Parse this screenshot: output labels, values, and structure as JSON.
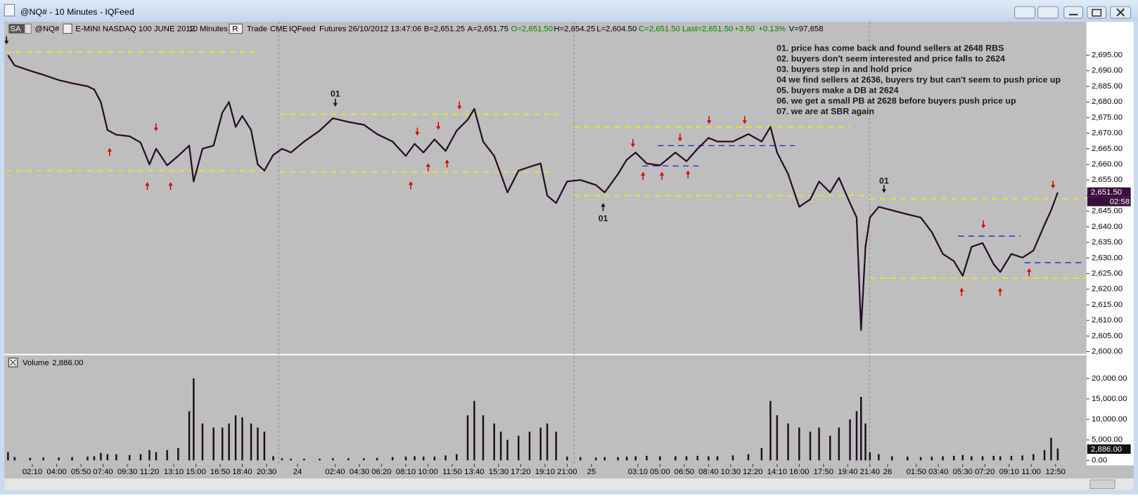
{
  "window": {
    "title": "@NQ# - 10 Minutes - IQFeed"
  },
  "toolbar": [
    {
      "text": "SA",
      "color": "#ffffff"
    },
    {
      "text": "@NQ#",
      "color": "#000000"
    },
    {
      "text": "E-MINI NASDAQ 100 JUNE 2012",
      "color": "#000000"
    },
    {
      "text": "10 Minutes",
      "color": "#000000"
    },
    {
      "text": "R",
      "color": "#000000"
    },
    {
      "text": "Trade",
      "color": "#000000"
    },
    {
      "text": "CME",
      "color": "#000000"
    },
    {
      "text": "IQFeed",
      "color": "#000000"
    },
    {
      "text": "Futures",
      "color": "#000000"
    },
    {
      "text": "26/10/2012",
      "color": "#000000"
    },
    {
      "text": "13:47:06",
      "color": "#000000"
    },
    {
      "text": "B=2,651.25",
      "color": "#000000"
    },
    {
      "text": "A=2,651.75",
      "color": "#000000"
    },
    {
      "text": "O=2,651.50",
      "color": "#008000"
    },
    {
      "text": "H=2,654.25",
      "color": "#000000"
    },
    {
      "text": "L=2,604.50",
      "color": "#000000"
    },
    {
      "text": "C=2,651.50",
      "color": "#008000"
    },
    {
      "text": "Last=2,651.50",
      "color": "#008000"
    },
    {
      "text": "+3.50",
      "color": "#008000"
    },
    {
      "text": "+0.13%",
      "color": "#008000"
    },
    {
      "text": "V=97,658",
      "color": "#000000"
    }
  ],
  "annotations": [
    "01. price has come back and found sellers at 2648 RBS",
    "02. buyers don't seem interested and price falls to 2624",
    "03. buyers step in and hold price",
    "04 we find sellers at 2636, buyers try but can't seem to push price up",
    "05. buyers make a DB at 2624",
    "06. we get a small PB at 2628 before buyers push price up",
    "07. we are at SBR again"
  ],
  "markers": [
    "01",
    "01",
    "01"
  ],
  "chart_data": [
    {
      "type": "line",
      "color": "#2a0c2a",
      "x": [
        1,
        4,
        11,
        17,
        24,
        30,
        37,
        40,
        43,
        46,
        50,
        56,
        61,
        65,
        68,
        73,
        78,
        83,
        85,
        89,
        94,
        98,
        101,
        104,
        107,
        111,
        114,
        117,
        121,
        125,
        129,
        135,
        142,
        148,
        155,
        162,
        168,
        175,
        181,
        185,
        189,
        194,
        199,
        204,
        209,
        212,
        216,
        221,
        224,
        227,
        232,
        237,
        242,
        245,
        249,
        254,
        260,
        267,
        271,
        277,
        281,
        285,
        290,
        296,
        303,
        308,
        313,
        318,
        322,
        329,
        336,
        342,
        346,
        349,
        354,
        359,
        364,
        368,
        373,
        377,
        382,
        385,
        387,
        389,
        391,
        395,
        401,
        408,
        414,
        419,
        424,
        429,
        433,
        437,
        442,
        447,
        450,
        455,
        460,
        465,
        470,
        473,
        476
      ],
      "values": [
        2695,
        2691.7,
        2690,
        2688.7,
        2687,
        2686,
        2685,
        2684,
        2680,
        2671,
        2669.5,
        2669,
        2667,
        2660,
        2665,
        2659.7,
        2662.7,
        2666,
        2654.5,
        2665,
        2666,
        2676.6,
        2680,
        2672,
        2675.5,
        2671,
        2660,
        2658,
        2663,
        2665,
        2663.8,
        2667.3,
        2670.8,
        2674.8,
        2673.6,
        2672.7,
        2669.7,
        2667.3,
        2662.7,
        2666.6,
        2663.8,
        2668,
        2664.3,
        2670.8,
        2674.3,
        2677.8,
        2667.3,
        2662.7,
        2656.9,
        2651,
        2658,
        2659.2,
        2660.3,
        2650,
        2647.6,
        2654.5,
        2655,
        2653.4,
        2651,
        2656.9,
        2661.5,
        2663.8,
        2660.3,
        2659.7,
        2663.8,
        2661,
        2665,
        2668.5,
        2667.3,
        2667.3,
        2669.7,
        2667.3,
        2672,
        2663.8,
        2656.9,
        2646.4,
        2648.8,
        2654.5,
        2651,
        2655.7,
        2647.6,
        2643,
        2606.9,
        2633.6,
        2643,
        2646.4,
        2645.3,
        2644,
        2643,
        2638.3,
        2631.3,
        2629,
        2624.3,
        2633.6,
        2634.8,
        2628,
        2625.5,
        2631.3,
        2630.1,
        2632.4,
        2640.6,
        2645.3,
        2651
      ],
      "xlim": [
        0,
        489
      ],
      "ylim": [
        2599.3,
        2701.5
      ],
      "yticks": [
        {
          "value": 2600,
          "label": "2,600.00"
        },
        {
          "value": 2605,
          "label": "2,605.00"
        },
        {
          "value": 2610,
          "label": "2,610.00"
        },
        {
          "value": 2615,
          "label": "2,615.00"
        },
        {
          "value": 2620,
          "label": "2,620.00"
        },
        {
          "value": 2625,
          "label": "2,625.00"
        },
        {
          "value": 2630,
          "label": "2,630.00"
        },
        {
          "value": 2635,
          "label": "2,635.00"
        },
        {
          "value": 2640,
          "label": "2,640.00"
        },
        {
          "value": 2645,
          "label": "2,645.00"
        },
        {
          "value": 2650,
          "label": "2,650.00"
        },
        {
          "value": 2655,
          "label": "2,655.00"
        },
        {
          "value": 2660,
          "label": "2,660.00"
        },
        {
          "value": 2665,
          "label": "2,665.00"
        },
        {
          "value": 2670,
          "label": "2,670.00"
        },
        {
          "value": 2675,
          "label": "2,675.00"
        },
        {
          "value": 2680,
          "label": "2,680.00"
        },
        {
          "value": 2685,
          "label": "2,685.00"
        },
        {
          "value": 2690,
          "label": "2,690.00"
        },
        {
          "value": 2695,
          "label": "2,695.00"
        }
      ],
      "last_label": "2,651.50",
      "time_label": "02:58",
      "levels": [
        {
          "value": 2696,
          "x": [
            0,
            115
          ],
          "color": "#f0f000"
        },
        {
          "value": 2658,
          "x": [
            0,
            117
          ],
          "color": "#f0f000"
        },
        {
          "value": 2676,
          "x": [
            124,
            250
          ],
          "color": "#f0f000"
        },
        {
          "value": 2657.5,
          "x": [
            124,
            249
          ],
          "color": "#f0f000"
        },
        {
          "value": 2672,
          "x": [
            257,
            382
          ],
          "color": "#f0f000"
        },
        {
          "value": 2650,
          "x": [
            257,
            391
          ],
          "color": "#f0f000"
        },
        {
          "value": 2649,
          "x": [
            391,
            489
          ],
          "color": "#f0f000"
        },
        {
          "value": 2623.5,
          "x": [
            391,
            489
          ],
          "color": "#f0f000"
        },
        {
          "value": 2666,
          "x": [
            295,
            357
          ],
          "color": "#2020d0"
        },
        {
          "value": 2659.5,
          "x": [
            288,
            315
          ],
          "color": "#2020d0"
        },
        {
          "value": 2637,
          "x": [
            431,
            459
          ],
          "color": "#2020d0"
        },
        {
          "value": 2628.5,
          "x": [
            461,
            487
          ],
          "color": "#2020d0"
        }
      ]
    },
    {
      "type": "bar",
      "title": "Volume",
      "current_label": "2,886.00",
      "color": "#1e0e1e",
      "x": [
        1,
        4,
        11,
        17,
        24,
        30,
        37,
        40,
        43,
        46,
        50,
        56,
        61,
        65,
        68,
        73,
        78,
        83,
        85,
        89,
        94,
        98,
        101,
        104,
        107,
        111,
        114,
        117,
        121,
        125,
        129,
        135,
        142,
        148,
        155,
        162,
        168,
        175,
        181,
        185,
        189,
        194,
        199,
        204,
        209,
        212,
        216,
        221,
        224,
        227,
        232,
        237,
        242,
        245,
        249,
        254,
        260,
        267,
        271,
        277,
        281,
        285,
        290,
        296,
        303,
        308,
        313,
        318,
        322,
        329,
        336,
        342,
        346,
        349,
        354,
        359,
        364,
        368,
        373,
        377,
        382,
        385,
        387,
        389,
        391,
        395,
        401,
        408,
        414,
        419,
        424,
        429,
        433,
        437,
        442,
        447,
        450,
        455,
        460,
        465,
        470,
        473,
        476
      ],
      "values": [
        2000,
        800,
        600,
        700,
        700,
        800,
        900,
        1000,
        1800,
        1500,
        1500,
        1300,
        1500,
        2500,
        2000,
        2500,
        3000,
        12000,
        20000,
        9000,
        8000,
        8000,
        9000,
        11000,
        10500,
        9000,
        8000,
        7000,
        1000,
        500,
        400,
        400,
        400,
        500,
        500,
        500,
        600,
        800,
        900,
        1000,
        900,
        900,
        1200,
        1500,
        11000,
        14500,
        11000,
        9000,
        7000,
        5000,
        6000,
        7000,
        8000,
        9000,
        7000,
        900,
        800,
        700,
        800,
        800,
        900,
        1000,
        1100,
        1000,
        1000,
        1000,
        1100,
        1000,
        1000,
        1200,
        1500,
        3000,
        14500,
        11000,
        9000,
        8000,
        7000,
        8000,
        6000,
        8000,
        10000,
        12000,
        15500,
        9000,
        2000,
        1500,
        1000,
        900,
        800,
        900,
        1000,
        1100,
        1300,
        1000,
        1000,
        1100,
        1000,
        1100,
        1200,
        1500,
        2500,
        5500,
        2886
      ],
      "xlim": [
        0,
        489
      ],
      "ylim": [
        -885,
        25660
      ],
      "yticks": [
        {
          "value": 0,
          "label": "0.00"
        },
        {
          "value": 5000,
          "label": "5,000.00"
        },
        {
          "value": 10000,
          "label": "10,000.00"
        },
        {
          "value": 15000,
          "label": "15,000.00"
        },
        {
          "value": 20000,
          "label": "20,000.00"
        }
      ],
      "xticks": [
        {
          "value": 12,
          "label": "02:10"
        },
        {
          "value": 23,
          "label": "04:00"
        },
        {
          "value": 34,
          "label": "05:50"
        },
        {
          "value": 44,
          "label": "07:40"
        },
        {
          "value": 55,
          "label": "09:30"
        },
        {
          "value": 65,
          "label": "11:20"
        },
        {
          "value": 76,
          "label": "13:10"
        },
        {
          "value": 86,
          "label": "15:00"
        },
        {
          "value": 97,
          "label": "16:50"
        },
        {
          "value": 107,
          "label": "18:40"
        },
        {
          "value": 118,
          "label": "20:30"
        },
        {
          "value": 132,
          "label": "24"
        },
        {
          "value": 149,
          "label": "02:40"
        },
        {
          "value": 160,
          "label": "04:30"
        },
        {
          "value": 170,
          "label": "06:20"
        },
        {
          "value": 181,
          "label": "08:10"
        },
        {
          "value": 191,
          "label": "10:00"
        },
        {
          "value": 202,
          "label": "11:50"
        },
        {
          "value": 212,
          "label": "13:40"
        },
        {
          "value": 223,
          "label": "15:30"
        },
        {
          "value": 233,
          "label": "17:20"
        },
        {
          "value": 244,
          "label": "19:10"
        },
        {
          "value": 254,
          "label": "21:00"
        },
        {
          "value": 265,
          "label": "25"
        },
        {
          "value": 286,
          "label": "03:10"
        },
        {
          "value": 296,
          "label": "05:00"
        },
        {
          "value": 307,
          "label": "06:50"
        },
        {
          "value": 318,
          "label": "08:40"
        },
        {
          "value": 328,
          "label": "10:30"
        },
        {
          "value": 338,
          "label": "12:20"
        },
        {
          "value": 349,
          "label": "14:10"
        },
        {
          "value": 359,
          "label": "16:00"
        },
        {
          "value": 370,
          "label": "17:50"
        },
        {
          "value": 381,
          "label": "19:40"
        },
        {
          "value": 391,
          "label": "21:40"
        },
        {
          "value": 399,
          "label": "26"
        },
        {
          "value": 412,
          "label": "01:50"
        },
        {
          "value": 422,
          "label": "03:40"
        },
        {
          "value": 433,
          "label": "05:30"
        },
        {
          "value": 443,
          "label": "07:20"
        },
        {
          "value": 454,
          "label": "09:10"
        },
        {
          "value": 464,
          "label": "11:00"
        },
        {
          "value": 475,
          "label": "12:50"
        }
      ]
    }
  ]
}
